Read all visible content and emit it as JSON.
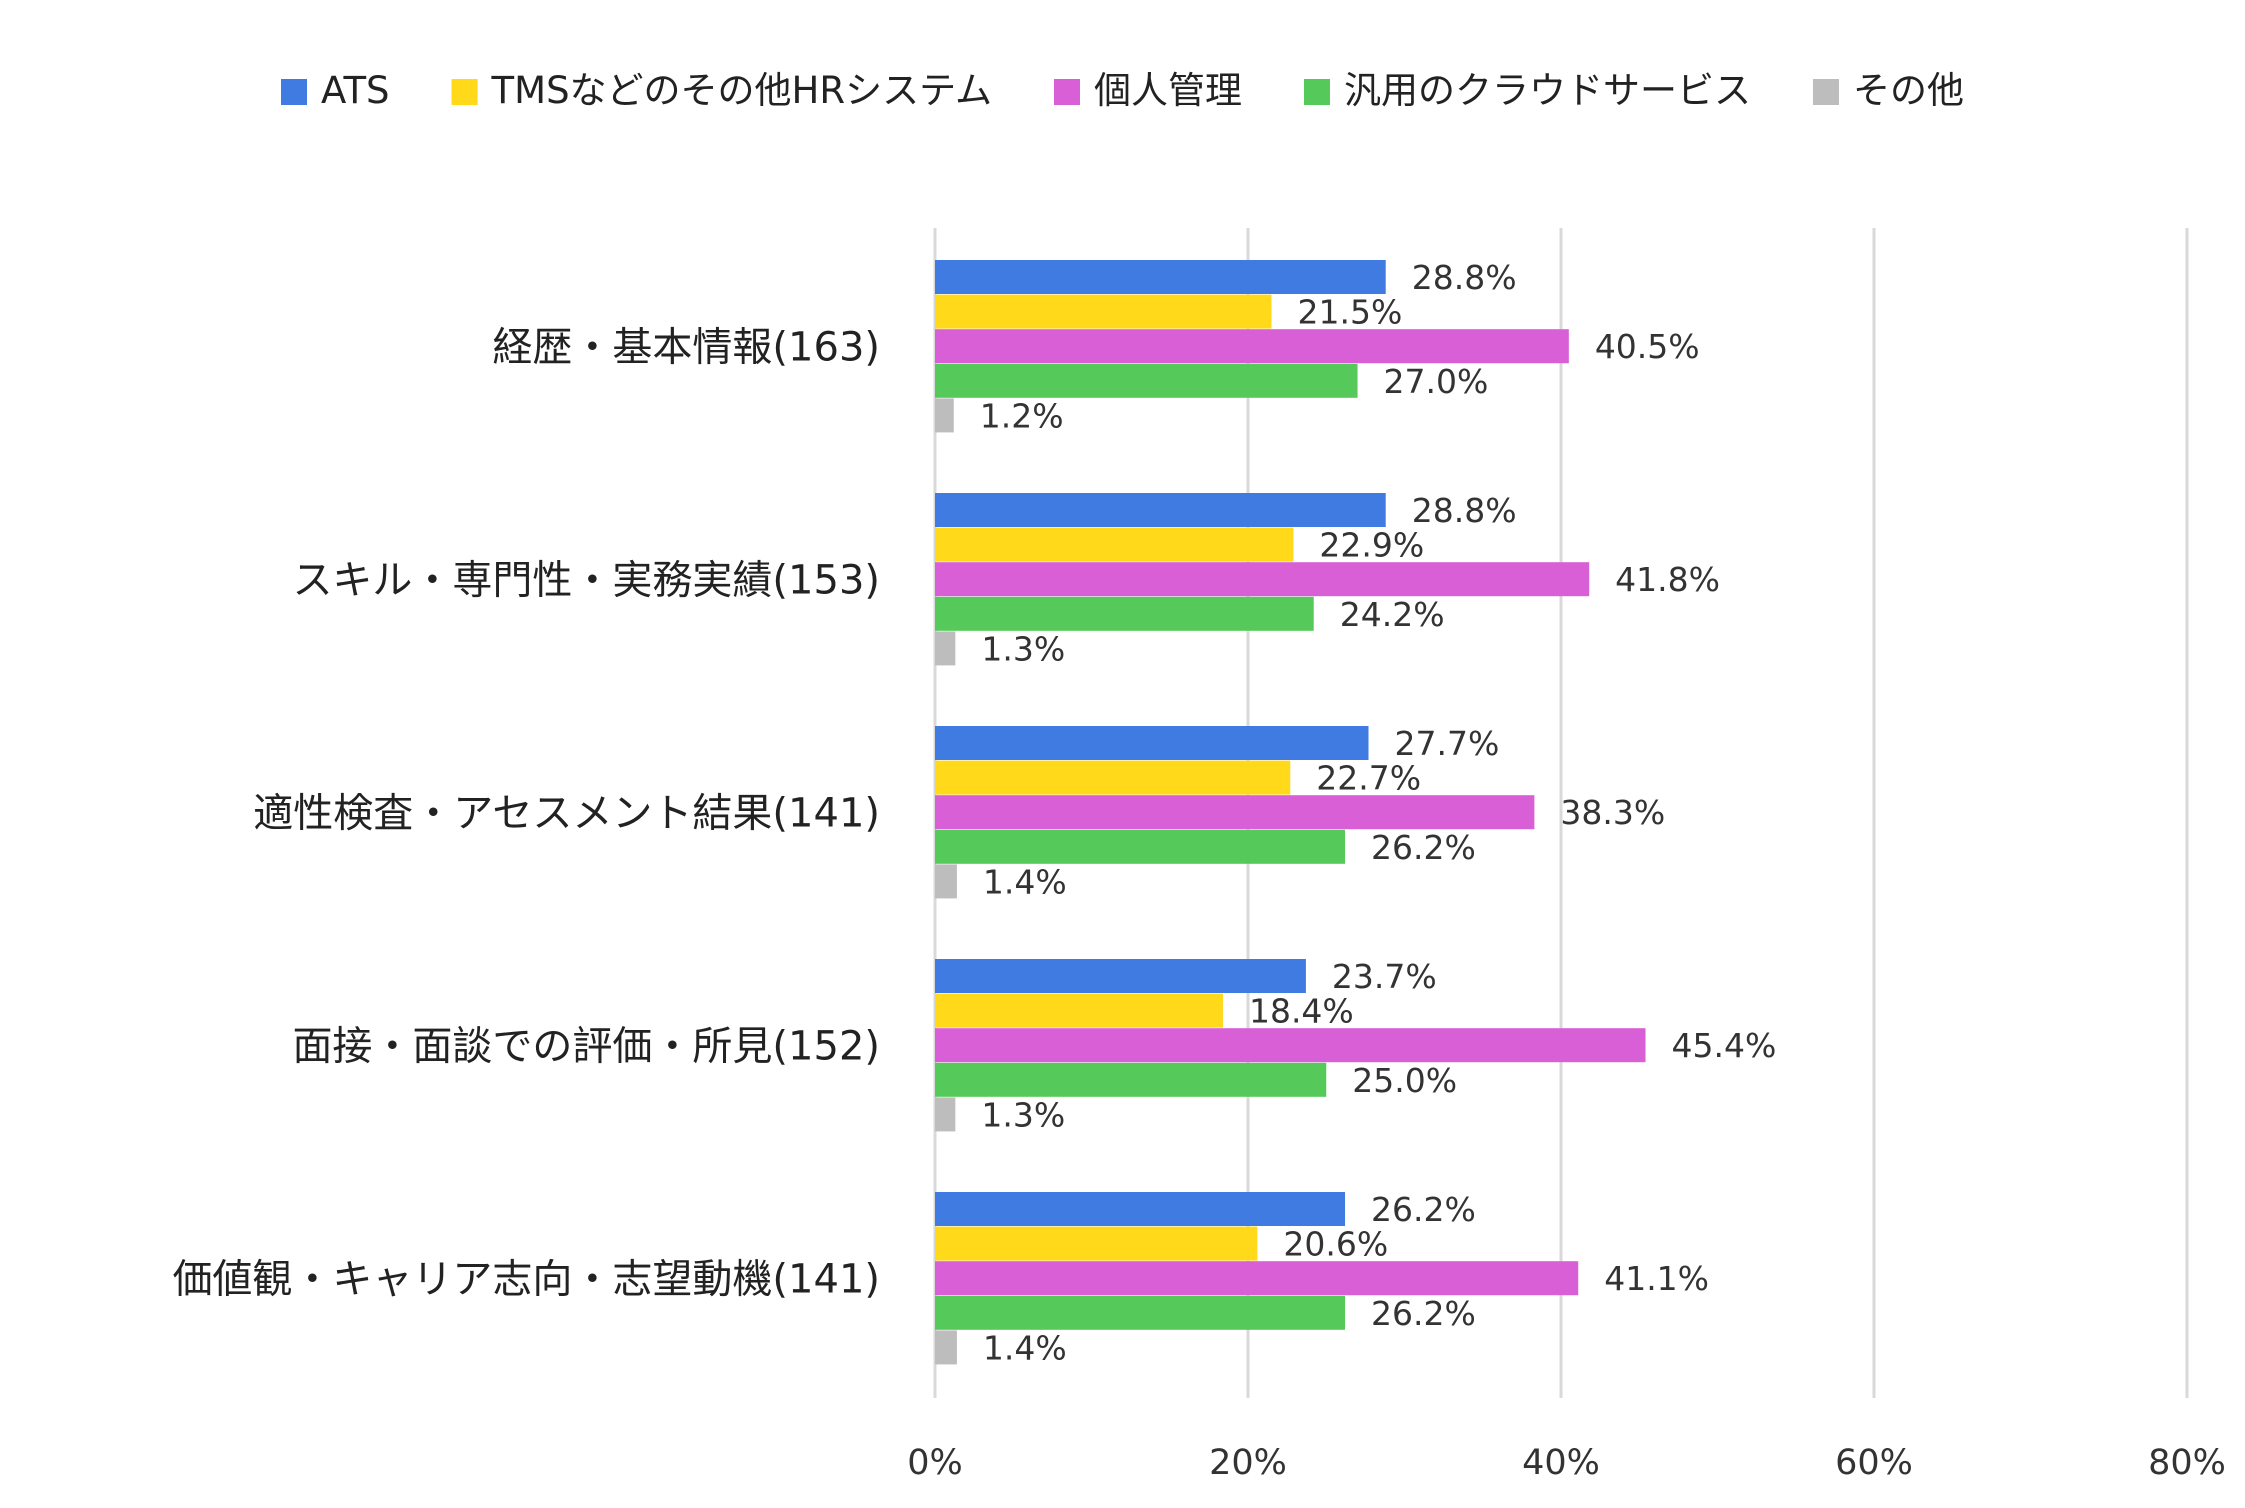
{
  "chart_data": {
    "type": "bar",
    "orientation": "horizontal",
    "title": "",
    "xlabel": "",
    "ylabel": "",
    "xlim": [
      0,
      80
    ],
    "x_ticks": [
      "0%",
      "20%",
      "40%",
      "60%",
      "80%"
    ],
    "grid": true,
    "legend_position": "top",
    "categories": [
      "経歴・基本情報(163)",
      "スキル・専門性・実務実績(153)",
      "適性検査・アセスメント結果(141)",
      "面接・面談での評価・所見(152)",
      "価値観・キャリア志向・志望動機(141)"
    ],
    "series": [
      {
        "name": "ATS",
        "color": "#3f7be0",
        "values": [
          28.8,
          28.8,
          27.7,
          23.7,
          26.2
        ],
        "labels": [
          "28.8%",
          "28.8%",
          "27.7%",
          "23.7%",
          "26.2%"
        ]
      },
      {
        "name": "TMSなどのその他HRシステム",
        "color": "#ffd91a",
        "values": [
          21.5,
          22.9,
          22.7,
          18.4,
          20.6
        ],
        "labels": [
          "21.5%",
          "22.9%",
          "22.7%",
          "18.4%",
          "20.6%"
        ]
      },
      {
        "name": "個人管理",
        "color": "#d85fd6",
        "values": [
          40.5,
          41.8,
          38.3,
          45.4,
          41.1
        ],
        "labels": [
          "40.5%",
          "41.8%",
          "38.3%",
          "45.4%",
          "41.1%"
        ]
      },
      {
        "name": "汎用のクラウドサービス",
        "color": "#55c95a",
        "values": [
          27.0,
          24.2,
          26.2,
          25.0,
          26.2
        ],
        "labels": [
          "27.0%",
          "24.2%",
          "26.2%",
          "25.0%",
          "26.2%"
        ]
      },
      {
        "name": "その他",
        "color": "#bdbdbd",
        "values": [
          1.2,
          1.3,
          1.4,
          1.3,
          1.4
        ],
        "labels": [
          "1.2%",
          "1.3%",
          "1.4%",
          "1.3%",
          "1.4%"
        ]
      }
    ]
  }
}
